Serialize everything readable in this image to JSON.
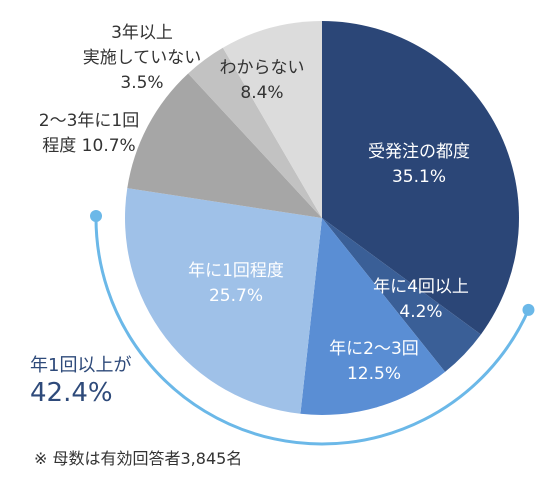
{
  "chart_data": {
    "type": "pie",
    "start_angle_deg": 0,
    "direction": "clockwise",
    "slices": [
      {
        "label_lines": [
          "受発注の都度"
        ],
        "value_text": "35.1%",
        "value": 35.1,
        "color": "#2b4677",
        "text_color": "#ffffff"
      },
      {
        "label_lines": [
          "年に4回以上"
        ],
        "value_text": "4.2%",
        "value": 4.2,
        "color": "#3a5f97",
        "text_color": "#ffffff"
      },
      {
        "label_lines": [
          "年に2～3回"
        ],
        "value_text": "12.5%",
        "value": 12.5,
        "color": "#5a8ed4",
        "text_color": "#ffffff"
      },
      {
        "label_lines": [
          "年に1回程度"
        ],
        "value_text": "25.7%",
        "value": 25.7,
        "color": "#9fc1e8",
        "text_color": "#ffffff"
      },
      {
        "label_lines": [
          "2～3年に1回",
          "程度 10.7%"
        ],
        "value_text": "",
        "value": 10.7,
        "color": "#a6a6a6",
        "text_color": "#333333"
      },
      {
        "label_lines": [
          "3年以上",
          "実施していない"
        ],
        "value_text": "3.5%",
        "value": 3.5,
        "color": "#c2c2c2",
        "text_color": "#333333"
      },
      {
        "label_lines": [
          "わからない"
        ],
        "value_text": "8.4%",
        "value": 8.4,
        "color": "#dcdcdc",
        "text_color": "#333333"
      }
    ],
    "summary": {
      "label": "年1回以上が",
      "value_text": "42.4%",
      "color": "#6bb8e8"
    },
    "footnote": "※ 母数は有効回答者3,845名"
  }
}
